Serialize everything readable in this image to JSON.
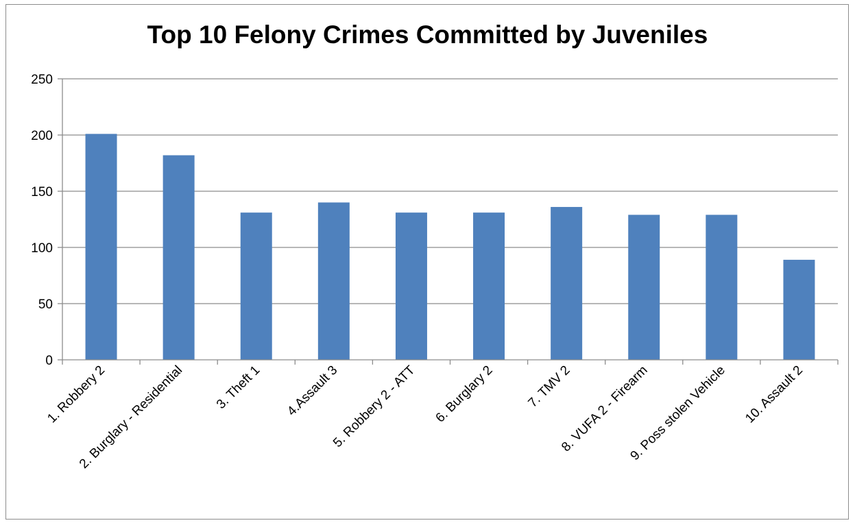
{
  "chart_data": {
    "type": "bar",
    "title": "Top 10 Felony Crimes Committed by Juveniles",
    "xlabel": "",
    "ylabel": "",
    "categories": [
      "1. Robbery 2",
      "2. Burglary - Residential",
      "3. Theft 1",
      "4.Assault 3",
      "5. Robbery 2 - ATT",
      "6. Burglary 2",
      "7. TMV 2",
      "8. VUFA 2 - Firearm",
      "9. Poss stolen Vehicle",
      "10. Assault 2"
    ],
    "values": [
      201,
      182,
      131,
      140,
      131,
      131,
      136,
      129,
      129,
      89
    ],
    "ylim": [
      0,
      250
    ],
    "yticks": [
      0,
      50,
      100,
      150,
      200,
      250
    ],
    "grid": true,
    "legend": "none",
    "bar_color": "#4f81bd"
  }
}
